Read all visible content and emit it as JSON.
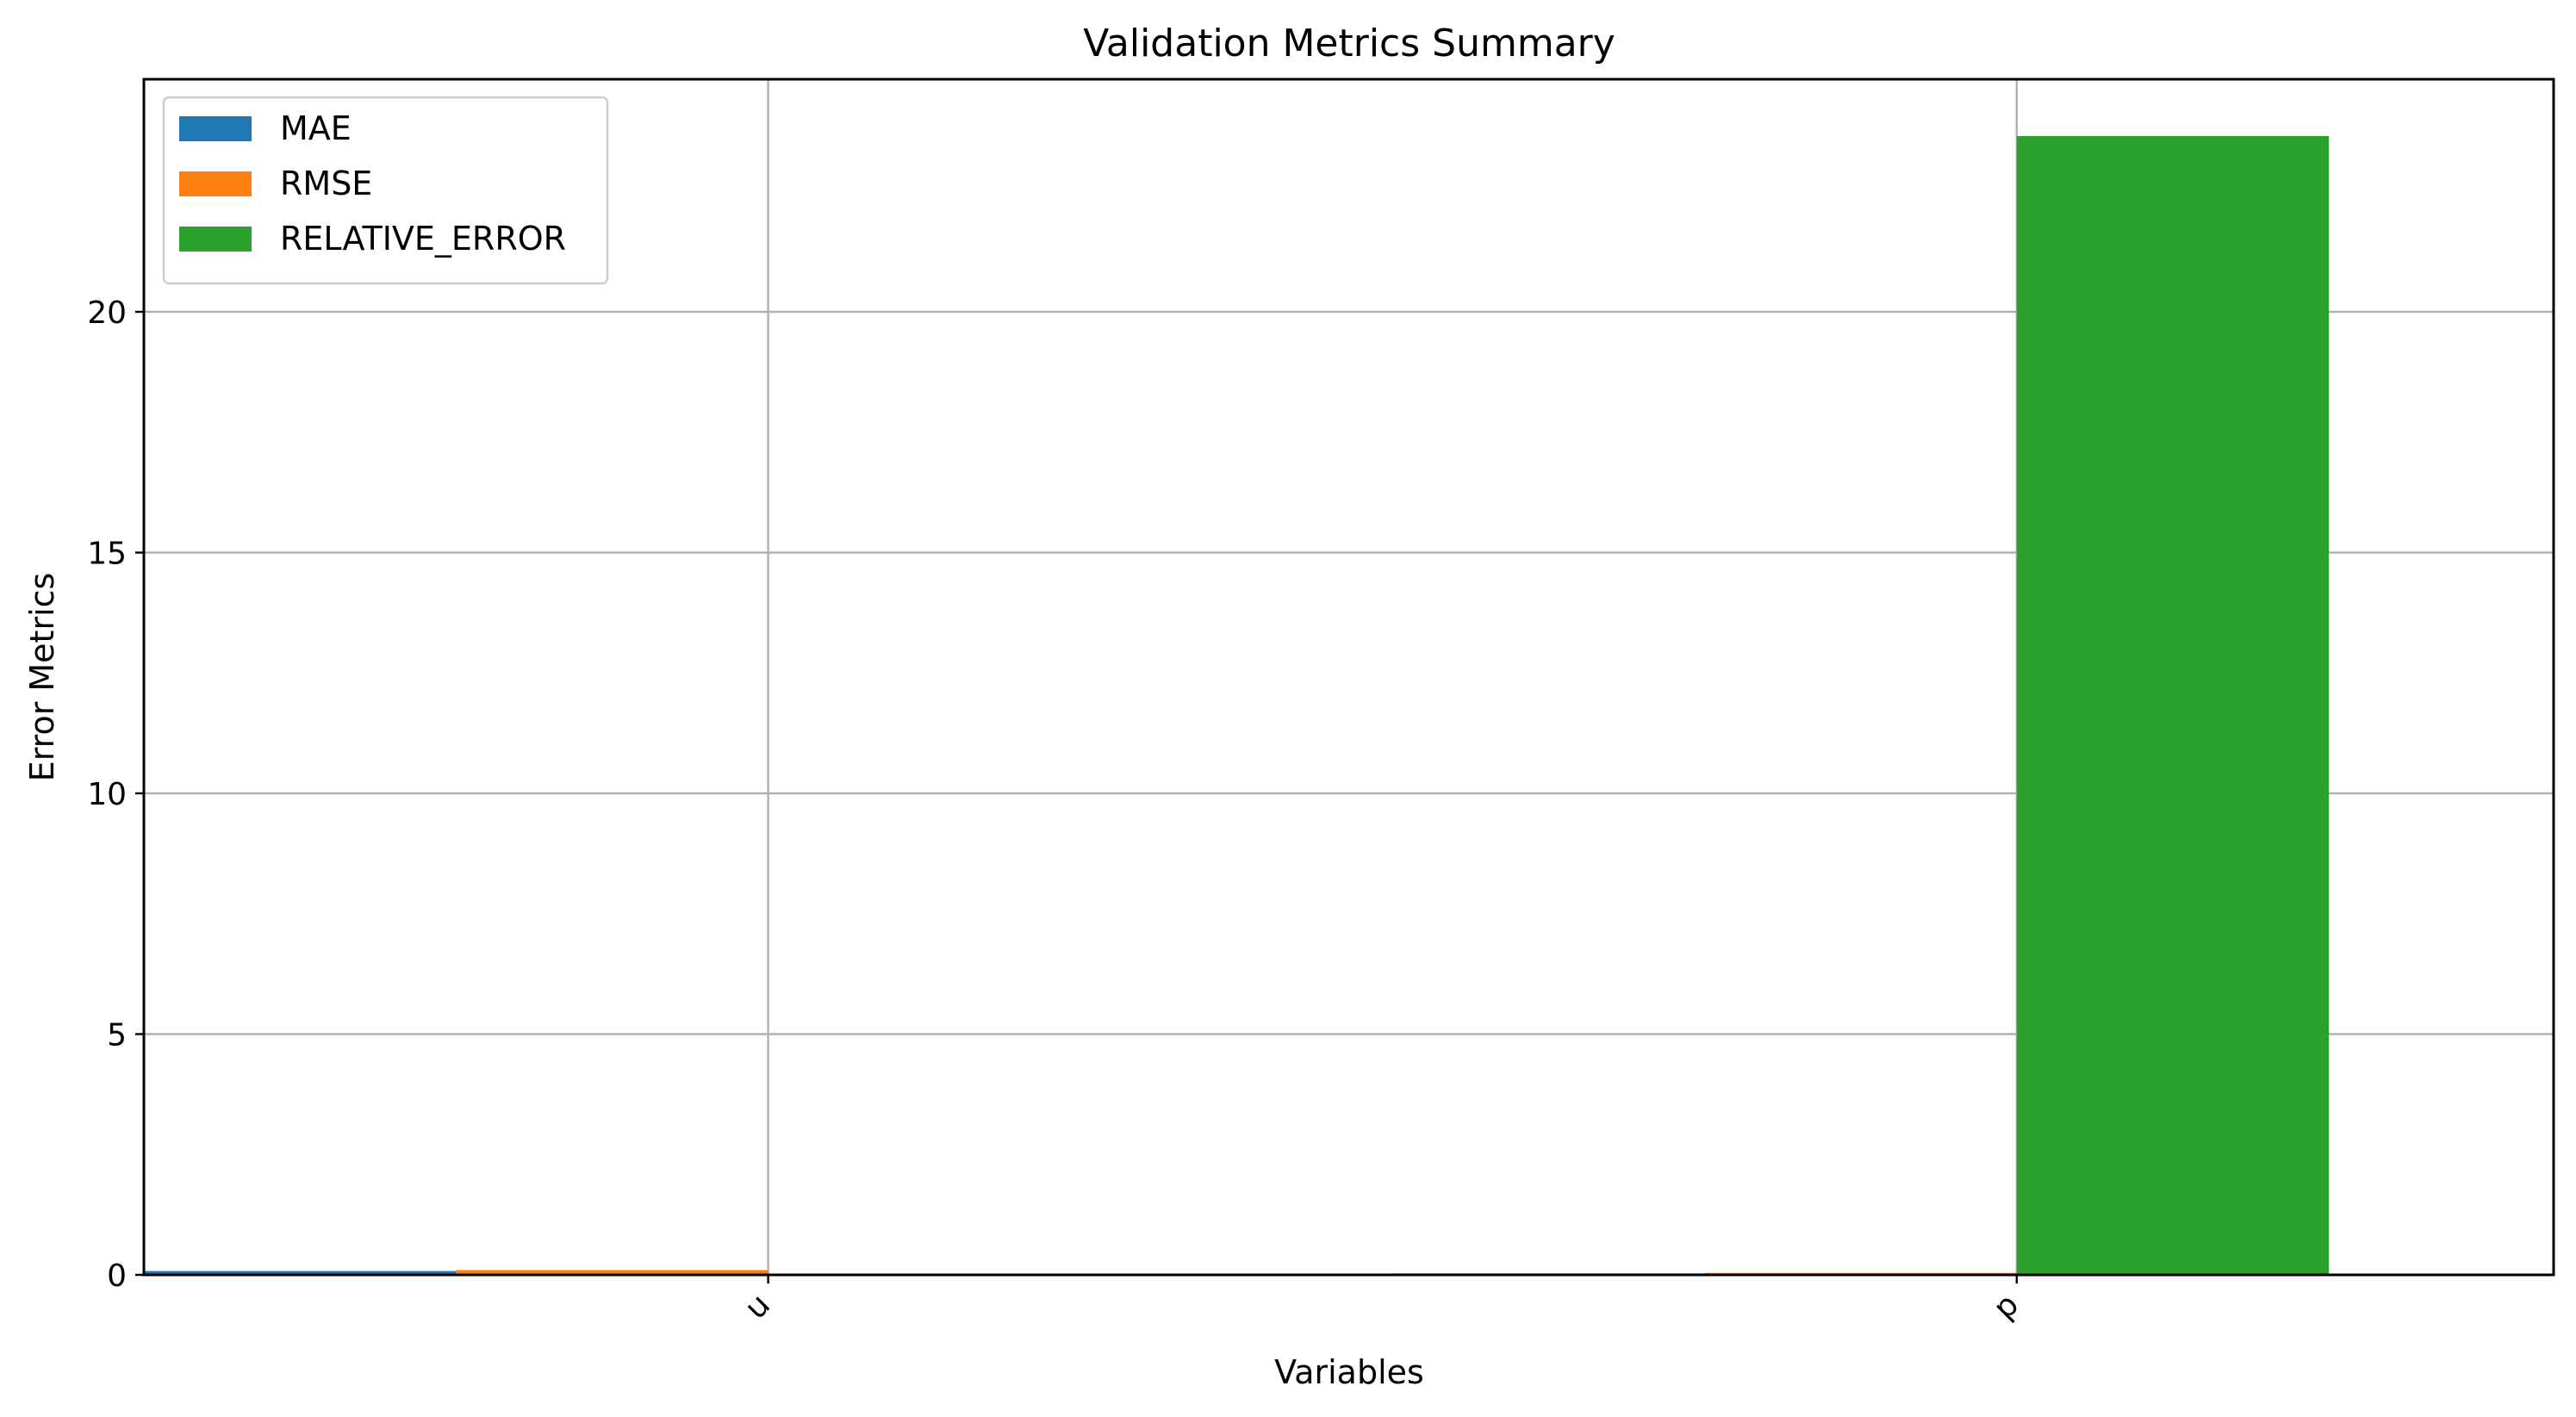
{
  "chart_data": {
    "type": "bar",
    "title": "Validation Metrics Summary",
    "xlabel": "Variables",
    "ylabel": "Error Metrics",
    "categories": [
      "u",
      "p"
    ],
    "series": [
      {
        "name": "MAE",
        "color": "#1f77b4",
        "values": [
          0.08,
          0.03
        ]
      },
      {
        "name": "RMSE",
        "color": "#ff7f0e",
        "values": [
          0.1,
          0.04
        ]
      },
      {
        "name": "RELATIVE_ERROR",
        "color": "#2ca02c",
        "values": [
          0.01,
          23.65
        ]
      }
    ],
    "ylim": [
      0,
      24.83
    ],
    "yticks": [
      0,
      5,
      10,
      15,
      20
    ],
    "grid": true,
    "legend": "top-left"
  }
}
